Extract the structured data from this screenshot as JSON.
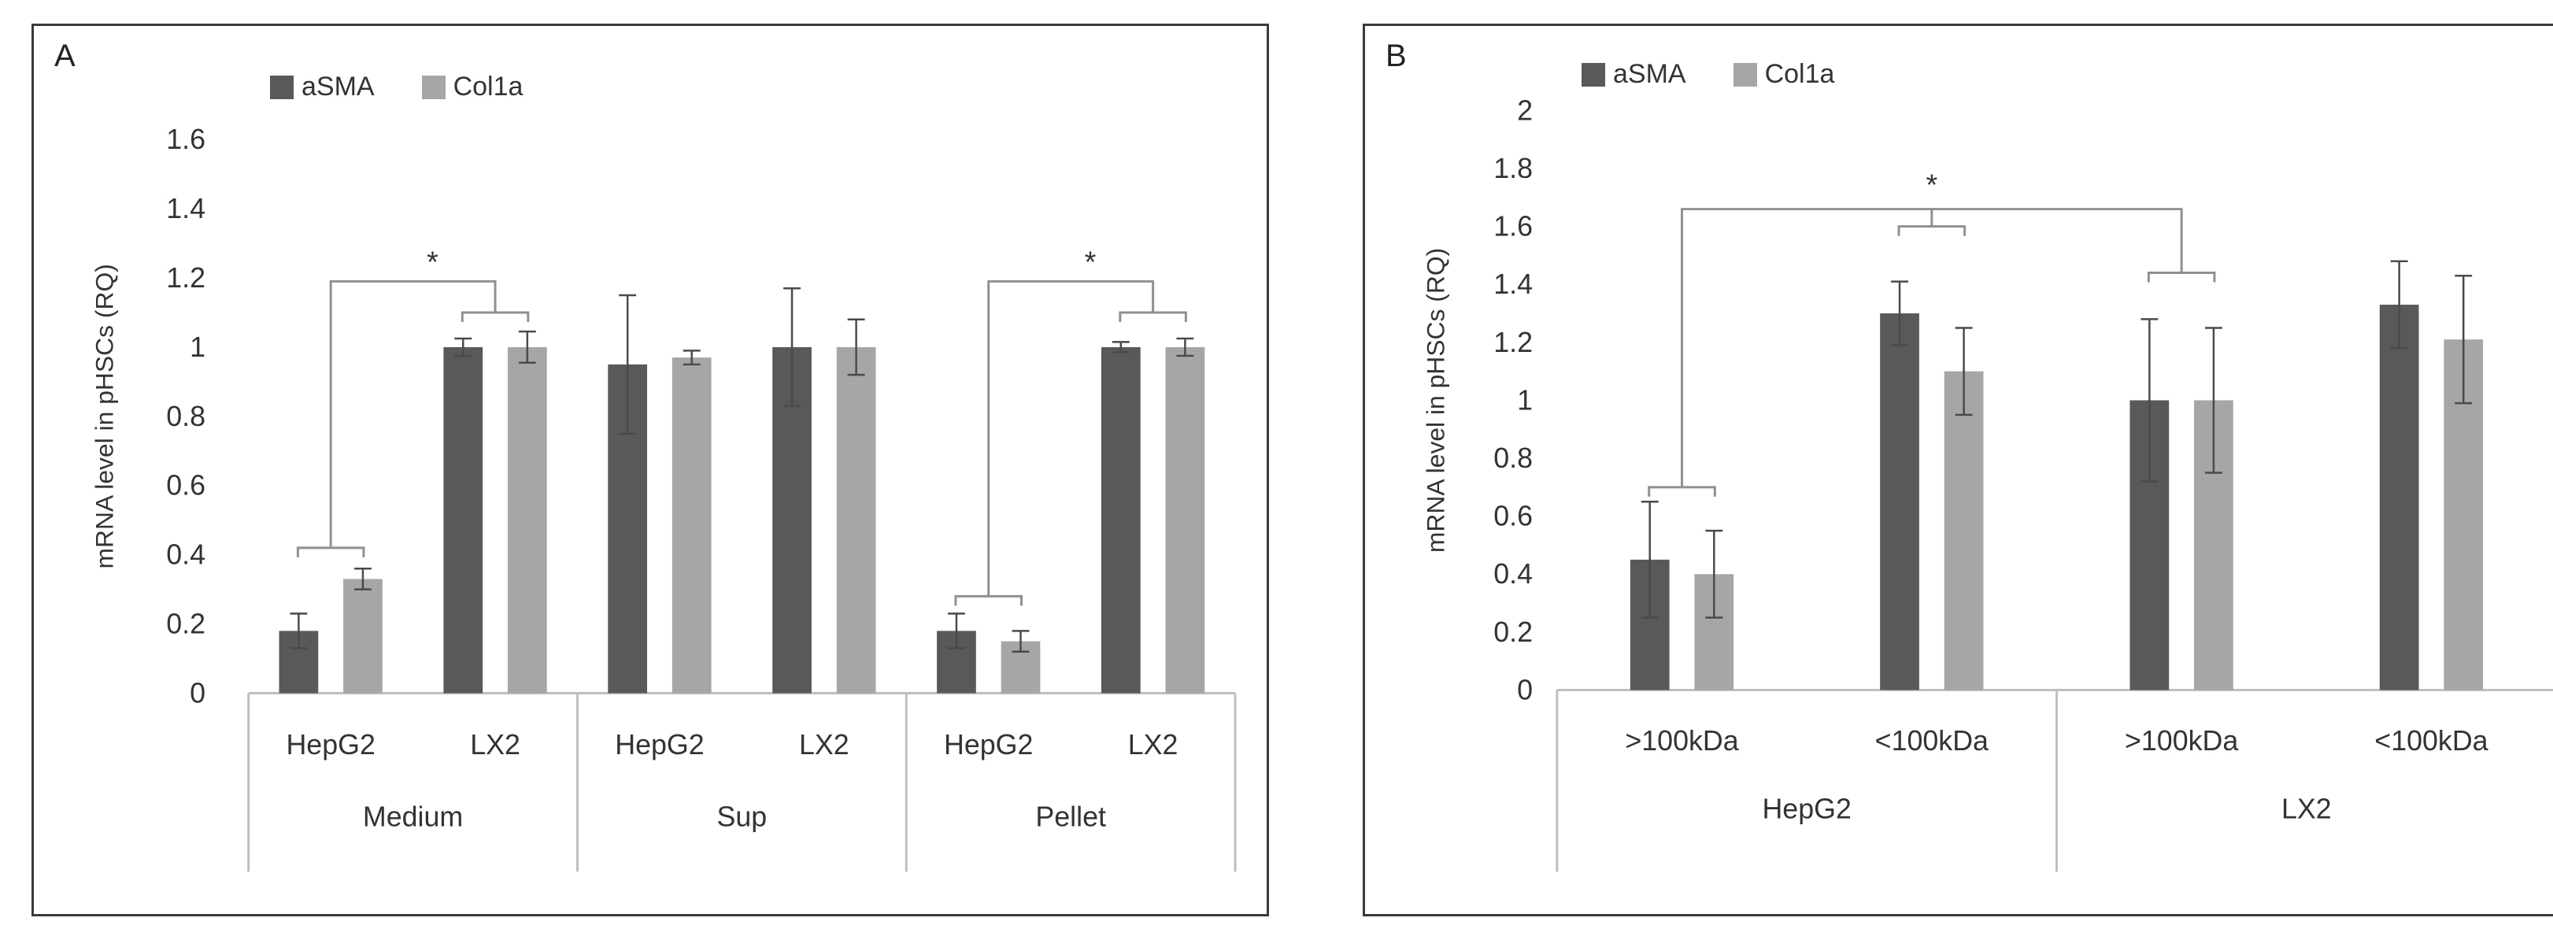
{
  "colors": {
    "aSMA": "#595959",
    "Col1a": "#a6a6a6",
    "axis": "#bfbfbf",
    "text": "#333333",
    "bracket": "#909090"
  },
  "chart_data": [
    {
      "type": "bar",
      "panel_label": "A",
      "title": "",
      "ylabel": "mRNA level in pHSCs  (RQ)",
      "ylim": [
        0,
        1.6
      ],
      "yticks": [
        "1.6",
        "1.4",
        "1.2",
        "1",
        "0.8",
        "0.6",
        "0.4",
        "0.2",
        "0"
      ],
      "categories": [
        "HepG2",
        "LX2",
        "HepG2",
        "LX2",
        "HepG2",
        "LX2"
      ],
      "groups": [
        "Medium",
        "Sup",
        "Pellet"
      ],
      "legend": [
        "aSMA",
        "Col1a"
      ],
      "series": [
        {
          "name": "aSMA",
          "values": [
            0.18,
            1.0,
            0.95,
            1.0,
            0.18,
            1.0
          ],
          "errors": [
            0.05,
            0.025,
            0.2,
            0.17,
            0.05,
            0.015
          ]
        },
        {
          "name": "Col1a",
          "values": [
            0.33,
            1.0,
            0.97,
            1.0,
            0.15,
            1.0
          ],
          "errors": [
            0.03,
            0.045,
            0.02,
            0.08,
            0.03,
            0.025
          ]
        }
      ],
      "annotations": [
        {
          "text": "*",
          "from": 0,
          "to": 1,
          "from_level": 0.42,
          "to_level": 1.1,
          "top_level": 1.19
        },
        {
          "text": "*",
          "from": 4,
          "to": 5,
          "from_level": 0.28,
          "to_level": 1.1,
          "top_level": 1.19
        }
      ]
    },
    {
      "type": "bar",
      "panel_label": "B",
      "title": "",
      "ylabel": "mRNA level in pHSCs (RQ)",
      "ylim": [
        0,
        2
      ],
      "yticks": [
        "2",
        "1.8",
        "1.6",
        "1.4",
        "1.2",
        "1",
        "0.8",
        "0.6",
        "0.4",
        "0.2",
        "0"
      ],
      "categories": [
        ">100kDa",
        "<100kDa",
        ">100kDa",
        "<100kDa"
      ],
      "groups": [
        "HepG2",
        "LX2"
      ],
      "legend": [
        "aSMA",
        "Col1a"
      ],
      "series": [
        {
          "name": "aSMA",
          "values": [
            0.45,
            1.3,
            1.0,
            1.33
          ],
          "errors": [
            0.2,
            0.11,
            0.28,
            0.15
          ]
        },
        {
          "name": "Col1a",
          "values": [
            0.4,
            1.1,
            1.0,
            1.21
          ],
          "errors": [
            0.15,
            0.15,
            0.25,
            0.22
          ]
        }
      ],
      "annotations": [
        {
          "text": "*",
          "groups": [
            0,
            1,
            2
          ],
          "levels": [
            0.7,
            1.6,
            1.44
          ],
          "top_level": 1.66
        }
      ]
    }
  ]
}
